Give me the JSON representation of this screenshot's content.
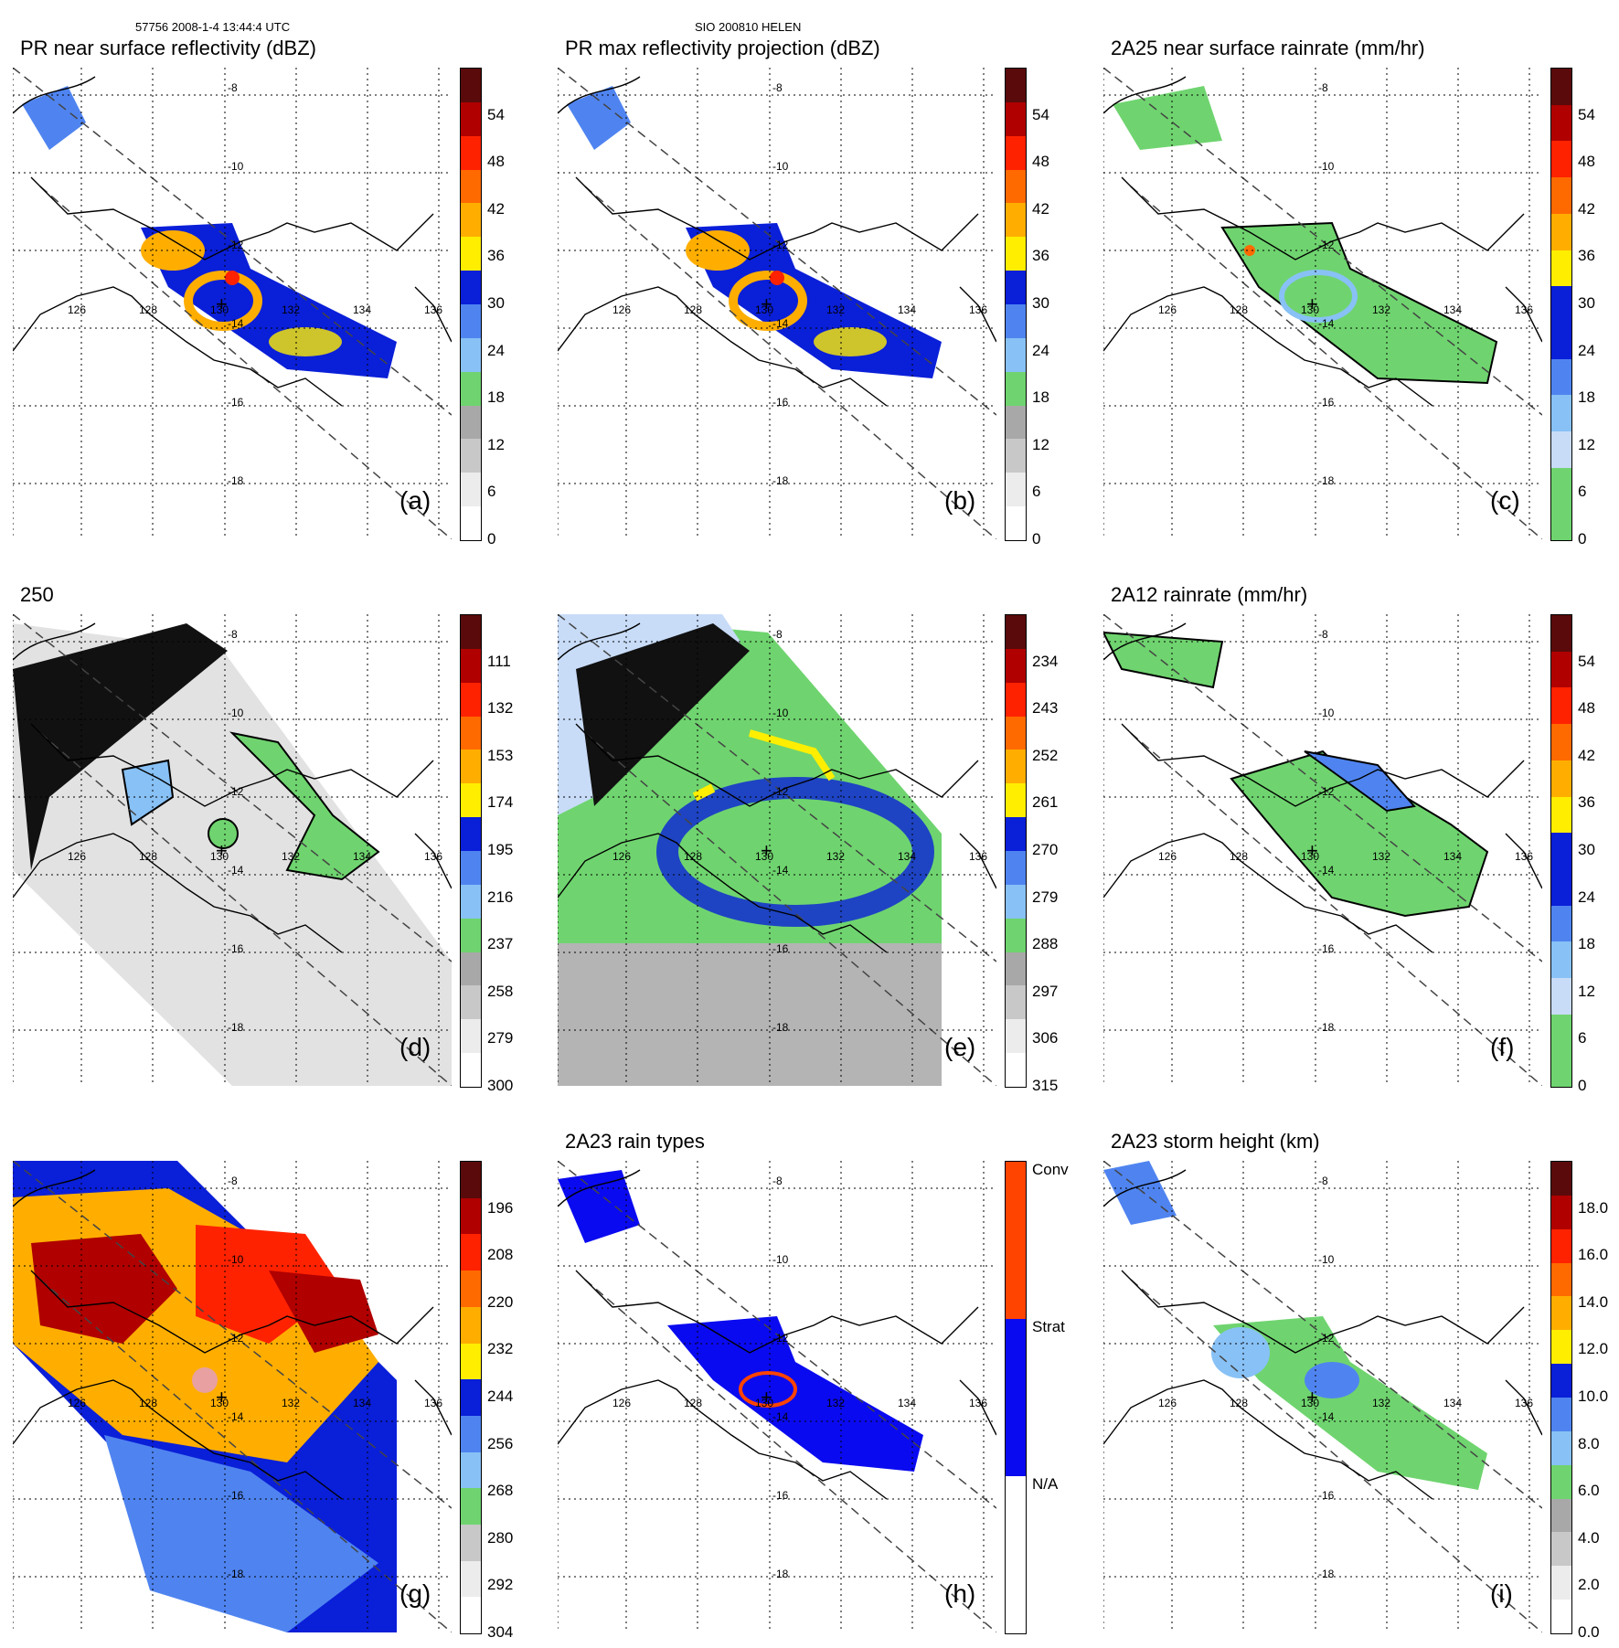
{
  "header": {
    "orbit_time": "57756 2008-1-4 13:44:4 UTC",
    "storm": "SIO 200810 HELEN"
  },
  "axes": {
    "lon_labels": [
      "126",
      "128",
      "130",
      "132",
      "134",
      "136"
    ],
    "lat_labels": [
      "-8",
      "-10",
      "-12",
      "-14",
      "-16",
      "-18"
    ]
  },
  "panels": [
    {
      "id": "a",
      "title": "PR near surface reflectivity (dBZ)",
      "letter": "(a)",
      "cbar_labels": [
        "0",
        "6",
        "12",
        "18",
        "24",
        "30",
        "36",
        "42",
        "48",
        "54"
      ],
      "cbar_colors": [
        "#ffffff",
        "#ececec",
        "#c8c8c8",
        "#a8a8a8",
        "#6fd46f",
        "#88c1f5",
        "#4f84f0",
        "#0a1fd8",
        "#ffee00",
        "#ffae00",
        "#ff6a00",
        "#ff2200",
        "#b00000",
        "#5a0a0a"
      ],
      "fill": "reflect"
    },
    {
      "id": "b",
      "title": "PR max reflectivity projection (dBZ)",
      "letter": "(b)",
      "cbar_labels": [
        "0",
        "6",
        "12",
        "18",
        "24",
        "30",
        "36",
        "42",
        "48",
        "54"
      ],
      "cbar_colors": [
        "#ffffff",
        "#ececec",
        "#c8c8c8",
        "#a8a8a8",
        "#6fd46f",
        "#88c1f5",
        "#4f84f0",
        "#0a1fd8",
        "#ffee00",
        "#ffae00",
        "#ff6a00",
        "#ff2200",
        "#b00000",
        "#5a0a0a"
      ],
      "fill": "reflect"
    },
    {
      "id": "c",
      "title": "2A25 near surface rainrate (mm/hr)",
      "letter": "(c)",
      "cbar_labels": [
        "0",
        "6",
        "12",
        "18",
        "24",
        "30",
        "36",
        "42",
        "48",
        "54"
      ],
      "cbar_colors": [
        "#6fd46f",
        "#6fd46f",
        "#c8dcf8",
        "#88c1f5",
        "#4f84f0",
        "#0a1fd8",
        "#0a1fd8",
        "#ffee00",
        "#ffae00",
        "#ff6a00",
        "#ff2200",
        "#b00000",
        "#5a0a0a"
      ],
      "fill": "rain"
    },
    {
      "id": "d",
      "title": "250",
      "letter": "(d)",
      "cbar_labels": [
        "300",
        "279",
        "258",
        "237",
        "216",
        "195",
        "174",
        "153",
        "132",
        "111"
      ],
      "cbar_colors": [
        "#ffffff",
        "#ececec",
        "#c8c8c8",
        "#a8a8a8",
        "#6fd46f",
        "#88c1f5",
        "#4f84f0",
        "#0a1fd8",
        "#ffee00",
        "#ffae00",
        "#ff6a00",
        "#ff2200",
        "#b00000",
        "#5a0a0a"
      ],
      "fill": "pct85"
    },
    {
      "id": "e",
      "title": "",
      "letter": "(e)",
      "cbar_labels": [
        "315",
        "306",
        "297",
        "288",
        "279",
        "270",
        "261",
        "252",
        "243",
        "234"
      ],
      "cbar_colors": [
        "#ffffff",
        "#ececec",
        "#c8c8c8",
        "#a8a8a8",
        "#6fd46f",
        "#88c1f5",
        "#4f84f0",
        "#0a1fd8",
        "#ffee00",
        "#ffae00",
        "#ff6a00",
        "#ff2200",
        "#b00000",
        "#5a0a0a"
      ],
      "fill": "pct37"
    },
    {
      "id": "f",
      "title": "2A12 rainrate (mm/hr)",
      "letter": "(f)",
      "cbar_labels": [
        "0",
        "6",
        "12",
        "18",
        "24",
        "30",
        "36",
        "42",
        "48",
        "54"
      ],
      "cbar_colors": [
        "#6fd46f",
        "#6fd46f",
        "#c8dcf8",
        "#88c1f5",
        "#4f84f0",
        "#0a1fd8",
        "#0a1fd8",
        "#ffee00",
        "#ffae00",
        "#ff6a00",
        "#ff2200",
        "#b00000",
        "#5a0a0a"
      ],
      "fill": "rain2"
    },
    {
      "id": "g",
      "title": "",
      "letter": "(g)",
      "cbar_labels": [
        "304",
        "292",
        "280",
        "268",
        "256",
        "244",
        "232",
        "220",
        "208",
        "196"
      ],
      "cbar_colors": [
        "#ffffff",
        "#ececec",
        "#c8c8c8",
        "#6fd46f",
        "#88c1f5",
        "#4f84f0",
        "#0a1fd8",
        "#ffee00",
        "#ffae00",
        "#ff6a00",
        "#ff2200",
        "#b00000",
        "#5a0a0a"
      ],
      "fill": "virs"
    },
    {
      "id": "h",
      "title": "2A23 rain types",
      "letter": "(h)",
      "cbar_labels": [
        "N/A",
        "Strat",
        "Conv"
      ],
      "cbar_colors": [
        "#ffffff",
        "#0a0af0",
        "#ff4400"
      ],
      "fill": "types"
    },
    {
      "id": "i",
      "title": "2A23 storm height (km)",
      "letter": "(i)",
      "cbar_labels": [
        "0.0",
        "2.0",
        "4.0",
        "6.0",
        "8.0",
        "10.0",
        "12.0",
        "14.0",
        "16.0",
        "18.0"
      ],
      "cbar_colors": [
        "#ffffff",
        "#ececec",
        "#c8c8c8",
        "#a8a8a8",
        "#6fd46f",
        "#88c1f5",
        "#4f84f0",
        "#0a1fd8",
        "#ffee00",
        "#ffae00",
        "#ff6a00",
        "#ff2200",
        "#b00000",
        "#5a0a0a"
      ],
      "fill": "height"
    }
  ]
}
